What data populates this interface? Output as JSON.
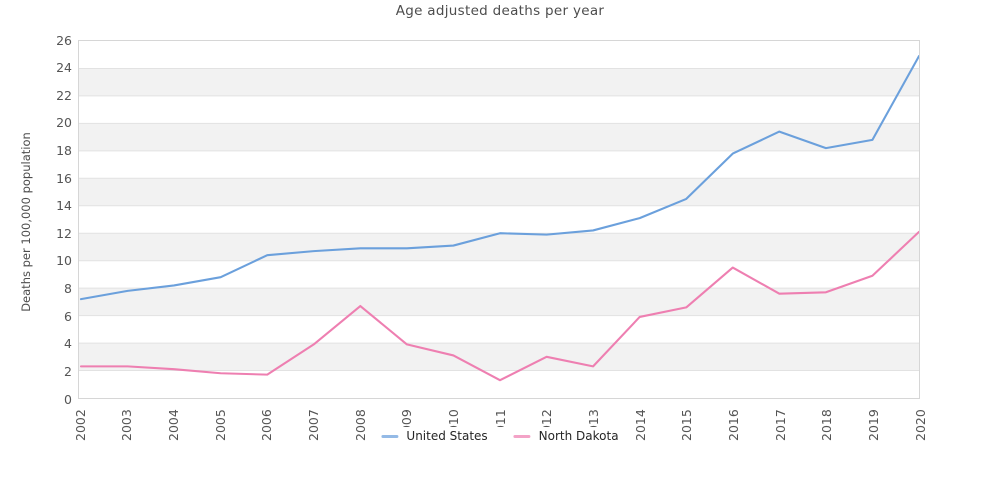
{
  "chart_data": {
    "type": "line",
    "title": "Age adjusted deaths per year",
    "xlabel": "",
    "ylabel": "Deaths per 100,000 population",
    "x": [
      2002,
      2003,
      2004,
      2005,
      2006,
      2007,
      2008,
      2009,
      2010,
      2011,
      2012,
      2013,
      2014,
      2015,
      2016,
      2017,
      2018,
      2019,
      2020
    ],
    "series": [
      {
        "name": "United States",
        "color": "#6ba0dc",
        "values": [
          7.2,
          7.8,
          8.2,
          8.8,
          10.4,
          10.7,
          10.9,
          10.9,
          11.1,
          12.0,
          11.9,
          12.2,
          13.1,
          14.5,
          17.8,
          19.4,
          18.2,
          18.8,
          24.9
        ]
      },
      {
        "name": "North Dakota",
        "color": "#ee7fb1",
        "values": [
          2.3,
          2.3,
          2.1,
          1.8,
          1.7,
          3.9,
          6.7,
          3.9,
          3.1,
          1.3,
          3.0,
          2.3,
          5.9,
          6.6,
          9.5,
          7.6,
          7.7,
          8.9,
          12.1
        ]
      }
    ],
    "ylim": [
      0,
      26
    ],
    "ytick_step": 2,
    "grid": "alternating-horizontal-bands",
    "band_color": "#f2f2f2",
    "gridline_color": "#e2e2e2",
    "border_color": "#d6d6d6",
    "tick_text_color": "#555555",
    "legend_position": "bottom-center"
  }
}
